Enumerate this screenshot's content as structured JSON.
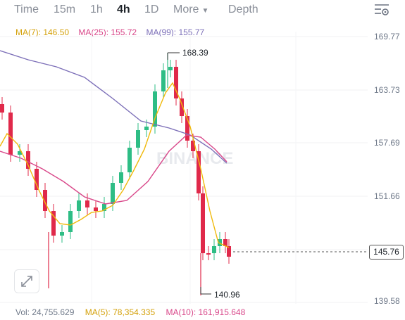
{
  "tabs": {
    "time": "Time",
    "m15": "15m",
    "h1": "1h",
    "h4": "4h",
    "d1": "1D",
    "more": "More",
    "depth": "Depth"
  },
  "ma": {
    "ma7": "MA(7): 146.50",
    "ma25": "MA(25): 155.72",
    "ma99": "MA(99): 155.77"
  },
  "volume": {
    "vol": "Vol: 24,755.629",
    "ma5": "MA(5): 78,354.335",
    "ma10": "MA(10): 161,915.648"
  },
  "price_axis": [
    "169.77",
    "163.73",
    "157.69",
    "151.66",
    "145.76",
    "139.58"
  ],
  "current_price": "145.76",
  "high_marker": "168.39",
  "low_marker": "140.96",
  "watermark": "BINANCE",
  "colors": {
    "up": "#2ebd85",
    "down": "#e0294a",
    "ma7": "#f0b90b",
    "ma25": "#d9488a",
    "ma99": "#7c6fb8"
  }
}
